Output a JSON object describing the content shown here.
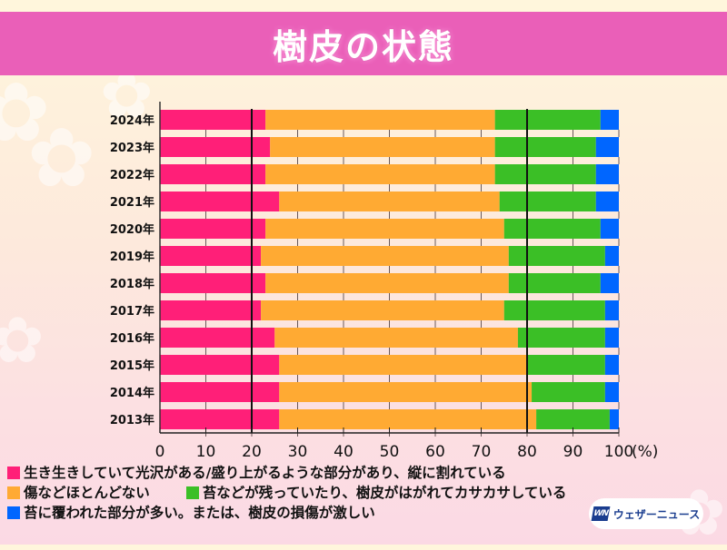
{
  "title": "樹皮の状態",
  "chart_data": {
    "type": "bar",
    "orientation": "horizontal",
    "stacked": true,
    "title": "樹皮の状態",
    "xlabel": "(%)",
    "ylabel": "",
    "xlim": [
      0,
      100
    ],
    "xticks": [
      "0",
      "10",
      "20",
      "30",
      "40",
      "50",
      "60",
      "70",
      "80",
      "90",
      "100"
    ],
    "reference_lines": [
      20,
      80
    ],
    "categories": [
      "2024年",
      "2023年",
      "2022年",
      "2021年",
      "2020年",
      "2019年",
      "2018年",
      "2017年",
      "2016年",
      "2015年",
      "2014年",
      "2013年"
    ],
    "series": [
      {
        "name": "生き生きしていて光沢がある/盛り上がるような部分があり、縦に割れている",
        "color": "#ff1f78",
        "values": [
          23,
          24,
          23,
          26,
          23,
          22,
          23,
          22,
          25,
          26,
          26,
          26
        ]
      },
      {
        "name": "傷などほとんどない",
        "color": "#ffaa33",
        "values": [
          50,
          49,
          50,
          48,
          52,
          54,
          53,
          53,
          53,
          54,
          55,
          56
        ]
      },
      {
        "name": "苔などが残っていたり、樹皮がはがれてカサカサしている",
        "color": "#3bbf26",
        "values": [
          23,
          22,
          22,
          21,
          21,
          21,
          20,
          22,
          19,
          17,
          16,
          16
        ]
      },
      {
        "name": "苔に覆われた部分が多い。または、樹皮の損傷が激しい",
        "color": "#0066ff",
        "values": [
          4,
          5,
          5,
          5,
          4,
          3,
          4,
          3,
          3,
          3,
          3,
          2
        ]
      }
    ],
    "grid": false,
    "legend_position": "bottom-left"
  },
  "legend": {
    "items": [
      {
        "label": "生き生きしていて光沢がある/盛り上がるような部分があり、縦に割れている",
        "color": "#ff1f78"
      },
      {
        "label": "傷などほとんどない",
        "color": "#ffaa33"
      },
      {
        "label": "苔などが残っていたり、樹皮がはがれてカサカサしている",
        "color": "#3bbf26"
      },
      {
        "label": "苔に覆われた部分が多い。または、樹皮の損傷が激しい",
        "color": "#0066ff"
      }
    ]
  },
  "logo": {
    "mark": "WN",
    "text": "ウェザーニュース"
  },
  "icons": {
    "sakura": "✿"
  }
}
